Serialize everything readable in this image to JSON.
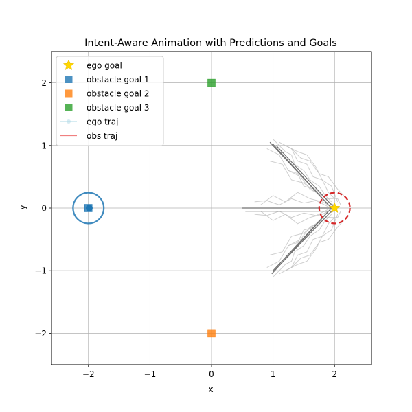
{
  "chart_data": {
    "type": "scatter",
    "title": "Intent-Aware Animation with Predictions and Goals",
    "xlabel": "x",
    "ylabel": "y",
    "xlim": [
      -2.6,
      2.6
    ],
    "ylim": [
      -2.5,
      2.5
    ],
    "xticks": [
      -2,
      -1,
      0,
      1,
      2
    ],
    "yticks": [
      -2,
      -1,
      0,
      1,
      2
    ],
    "xtick_labels": [
      "−2",
      "−1",
      "0",
      "1",
      "2"
    ],
    "ytick_labels": [
      "−2",
      "−1",
      "0",
      "1",
      "2"
    ],
    "grid": true,
    "legend_position": "top-left",
    "legend": [
      {
        "label": "ego goal",
        "marker": "star",
        "color": "#ffd700"
      },
      {
        "label": "obstacle goal 1",
        "marker": "square",
        "color": "#1f77b4"
      },
      {
        "label": "obstacle goal 2",
        "marker": "square",
        "color": "#ff7f0e"
      },
      {
        "label": "obstacle goal 3",
        "marker": "square",
        "color": "#2ca02c"
      },
      {
        "label": "ego traj",
        "marker": "line-circle",
        "color": "#add8e6"
      },
      {
        "label": "obs traj",
        "marker": "line",
        "color": "#f08080"
      }
    ],
    "goals": {
      "ego_goal": {
        "x": 2,
        "y": 0,
        "color": "#ffd700"
      },
      "obstacle_goal_1": {
        "x": -2,
        "y": 0,
        "color": "#1f77b4"
      },
      "obstacle_goal_2": {
        "x": 0,
        "y": -2,
        "color": "#ff7f0e"
      },
      "obstacle_goal_3": {
        "x": 0,
        "y": 2,
        "color": "#2ca02c"
      }
    },
    "ego_circle": {
      "x": 2,
      "y": 0,
      "r": 0.25,
      "color": "#d62728",
      "style": "dashed"
    },
    "obstacle": {
      "x": -2,
      "y": 0,
      "r": 0.25,
      "color": "#1f77b4",
      "marker_x": -2.02
    },
    "prediction_lines_dark": [
      [
        [
          0.95,
          1.05
        ],
        [
          1.95,
          0.0
        ]
      ],
      [
        [
          0.98,
          -1.05
        ],
        [
          1.95,
          0.0
        ]
      ],
      [
        [
          1.0,
          1.02
        ],
        [
          1.9,
          0.05
        ]
      ],
      [
        [
          1.0,
          -1.0
        ],
        [
          1.9,
          -0.05
        ]
      ],
      [
        [
          0.5,
          0.0
        ],
        [
          1.95,
          0.0
        ]
      ],
      [
        [
          0.55,
          -0.05
        ],
        [
          1.9,
          -0.05
        ]
      ],
      [
        [
          1.05,
          1.0
        ],
        [
          2.0,
          0.0
        ]
      ],
      [
        [
          1.02,
          -1.0
        ],
        [
          2.0,
          0.0
        ]
      ]
    ],
    "prediction_lines_light": [
      [
        [
          1.0,
          1.1
        ],
        [
          1.2,
          0.9
        ],
        [
          1.3,
          0.85
        ],
        [
          1.35,
          0.7
        ],
        [
          1.5,
          0.6
        ],
        [
          1.6,
          0.45
        ],
        [
          1.75,
          0.35
        ],
        [
          1.85,
          0.2
        ],
        [
          1.95,
          0.1
        ]
      ],
      [
        [
          1.1,
          1.05
        ],
        [
          1.3,
          0.95
        ],
        [
          1.4,
          0.75
        ],
        [
          1.55,
          0.7
        ],
        [
          1.65,
          0.5
        ],
        [
          1.8,
          0.45
        ],
        [
          1.9,
          0.25
        ],
        [
          2.0,
          0.15
        ]
      ],
      [
        [
          0.9,
          0.95
        ],
        [
          1.1,
          0.85
        ],
        [
          1.25,
          0.6
        ],
        [
          1.45,
          0.5
        ],
        [
          1.6,
          0.3
        ],
        [
          1.8,
          0.2
        ],
        [
          1.95,
          0.05
        ]
      ],
      [
        [
          1.2,
          1.0
        ],
        [
          1.4,
          0.9
        ],
        [
          1.55,
          0.85
        ],
        [
          1.7,
          0.65
        ],
        [
          1.8,
          0.45
        ],
        [
          1.95,
          0.35
        ],
        [
          2.05,
          0.1
        ]
      ],
      [
        [
          0.95,
          0.75
        ],
        [
          1.15,
          0.7
        ],
        [
          1.3,
          0.45
        ],
        [
          1.5,
          0.4
        ],
        [
          1.7,
          0.25
        ],
        [
          1.85,
          0.1
        ],
        [
          2.0,
          0.05
        ]
      ],
      [
        [
          1.0,
          -1.1
        ],
        [
          1.2,
          -0.9
        ],
        [
          1.3,
          -0.85
        ],
        [
          1.35,
          -0.7
        ],
        [
          1.5,
          -0.6
        ],
        [
          1.6,
          -0.45
        ],
        [
          1.75,
          -0.35
        ],
        [
          1.85,
          -0.2
        ],
        [
          1.95,
          -0.1
        ]
      ],
      [
        [
          1.1,
          -1.05
        ],
        [
          1.3,
          -0.95
        ],
        [
          1.4,
          -0.75
        ],
        [
          1.55,
          -0.7
        ],
        [
          1.65,
          -0.5
        ],
        [
          1.8,
          -0.45
        ],
        [
          1.9,
          -0.25
        ],
        [
          2.0,
          -0.15
        ]
      ],
      [
        [
          0.9,
          -0.95
        ],
        [
          1.1,
          -0.85
        ],
        [
          1.25,
          -0.6
        ],
        [
          1.45,
          -0.5
        ],
        [
          1.6,
          -0.3
        ],
        [
          1.8,
          -0.2
        ],
        [
          1.95,
          -0.05
        ]
      ],
      [
        [
          1.2,
          -1.0
        ],
        [
          1.4,
          -0.9
        ],
        [
          1.55,
          -0.85
        ],
        [
          1.7,
          -0.65
        ],
        [
          1.8,
          -0.45
        ],
        [
          1.95,
          -0.35
        ],
        [
          2.05,
          -0.1
        ]
      ],
      [
        [
          0.95,
          -0.75
        ],
        [
          1.15,
          -0.7
        ],
        [
          1.3,
          -0.45
        ],
        [
          1.5,
          -0.4
        ],
        [
          1.7,
          -0.25
        ],
        [
          1.85,
          -0.1
        ],
        [
          2.0,
          -0.05
        ]
      ],
      [
        [
          0.7,
          0.1
        ],
        [
          0.9,
          0.12
        ],
        [
          1.1,
          0.05
        ],
        [
          1.3,
          0.15
        ],
        [
          1.5,
          0.08
        ],
        [
          1.7,
          0.12
        ],
        [
          1.9,
          0.02
        ]
      ],
      [
        [
          0.7,
          -0.1
        ],
        [
          0.9,
          -0.12
        ],
        [
          1.1,
          -0.05
        ],
        [
          1.3,
          -0.15
        ],
        [
          1.5,
          -0.08
        ],
        [
          1.7,
          -0.12
        ],
        [
          1.9,
          -0.02
        ]
      ],
      [
        [
          0.8,
          0.05
        ],
        [
          1.0,
          0.2
        ],
        [
          1.2,
          0.1
        ],
        [
          1.4,
          0.25
        ],
        [
          1.6,
          0.15
        ],
        [
          1.8,
          0.1
        ],
        [
          2.0,
          0.0
        ]
      ],
      [
        [
          0.8,
          -0.05
        ],
        [
          1.0,
          -0.2
        ],
        [
          1.2,
          -0.1
        ],
        [
          1.4,
          -0.25
        ],
        [
          1.6,
          -0.15
        ],
        [
          1.8,
          -0.1
        ],
        [
          2.0,
          0.0
        ]
      ],
      [
        [
          1.3,
          0.95
        ],
        [
          1.45,
          0.8
        ],
        [
          1.6,
          0.75
        ],
        [
          1.75,
          0.55
        ],
        [
          1.9,
          0.5
        ],
        [
          2.05,
          0.3
        ],
        [
          2.15,
          0.2
        ]
      ],
      [
        [
          1.3,
          -0.95
        ],
        [
          1.45,
          -0.8
        ],
        [
          1.6,
          -0.75
        ],
        [
          1.75,
          -0.55
        ],
        [
          1.9,
          -0.5
        ],
        [
          2.05,
          -0.3
        ],
        [
          2.15,
          -0.2
        ]
      ],
      [
        [
          1.25,
          0.6
        ],
        [
          1.4,
          0.55
        ],
        [
          1.5,
          0.35
        ],
        [
          1.7,
          0.3
        ],
        [
          1.85,
          0.15
        ],
        [
          2.05,
          0.15
        ],
        [
          2.1,
          0.05
        ]
      ],
      [
        [
          1.25,
          -0.6
        ],
        [
          1.4,
          -0.55
        ],
        [
          1.5,
          -0.35
        ],
        [
          1.7,
          -0.3
        ],
        [
          1.85,
          -0.15
        ],
        [
          2.05,
          -0.15
        ],
        [
          2.1,
          -0.05
        ]
      ]
    ]
  }
}
